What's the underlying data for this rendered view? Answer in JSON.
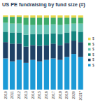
{
  "chart_data": {
    "type": "bar",
    "title": "US PE fundraising by fund size (#)",
    "stacked": true,
    "tick_labels": "x",
    "legend": "right",
    "categories": [
      "2010",
      "2011",
      "2012",
      "2013",
      "2014",
      "2015",
      "2016",
      "2017",
      "2018",
      "2019",
      "2020",
      "2021*"
    ],
    "ylim": [
      0,
      100
    ],
    "series": [
      {
        "name": "$",
        "color": "#1b9ad6",
        "values": [
          42,
          38,
          40,
          36,
          40,
          38,
          40,
          42,
          40,
          44,
          48,
          44
        ]
      },
      {
        "name": "$",
        "color": "#1f4266",
        "values": [
          22,
          24,
          22,
          22,
          20,
          21,
          20,
          20,
          20,
          19,
          18,
          20
        ]
      },
      {
        "name": "$",
        "color": "#13837e",
        "values": [
          14,
          15,
          15,
          16,
          15,
          16,
          15,
          14,
          15,
          14,
          13,
          14
        ]
      },
      {
        "name": "$",
        "color": "#67c4b4",
        "values": [
          12,
          12,
          12,
          13,
          12,
          12,
          12,
          12,
          12,
          11,
          10,
          11
        ]
      },
      {
        "name": "$",
        "color": "#3daa6b",
        "values": [
          8,
          9,
          9,
          10,
          10,
          10,
          10,
          9,
          10,
          9,
          8,
          8
        ]
      },
      {
        "name": "$",
        "color": "#e9d84c",
        "values": [
          2,
          2,
          2,
          3,
          3,
          3,
          3,
          3,
          3,
          3,
          3,
          3
        ]
      }
    ]
  }
}
